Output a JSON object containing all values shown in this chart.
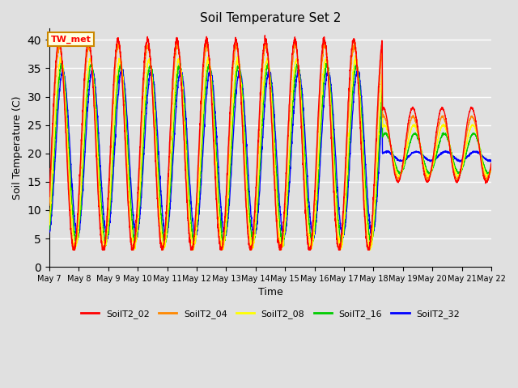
{
  "title": "Soil Temperature Set 2",
  "xlabel": "Time",
  "ylabel": "Soil Temperature (C)",
  "ylim": [
    0,
    42
  ],
  "yticks": [
    0,
    5,
    10,
    15,
    20,
    25,
    30,
    35,
    40
  ],
  "legend_labels": [
    "SoilT2_02",
    "SoilT2_04",
    "SoilT2_08",
    "SoilT2_16",
    "SoilT2_32"
  ],
  "line_colors": [
    "#ff0000",
    "#ff8800",
    "#ffff00",
    "#00cc00",
    "#0000ff"
  ],
  "bg_color": "#e0e0e0",
  "cutoff_day": 18.3,
  "annotation_text": "TW_met",
  "x_tick_days": [
    7,
    8,
    9,
    10,
    11,
    12,
    13,
    14,
    15,
    16,
    17,
    18,
    19,
    20,
    21,
    22
  ],
  "tick_labels": [
    "May 7",
    "May 8",
    "May 9",
    "May 10",
    "May 11",
    "May 12",
    "May 13",
    "May 14",
    "May 15",
    "May 16",
    "May 17",
    "May 18",
    "May 19",
    "May 20",
    "May 21",
    "May 22"
  ]
}
